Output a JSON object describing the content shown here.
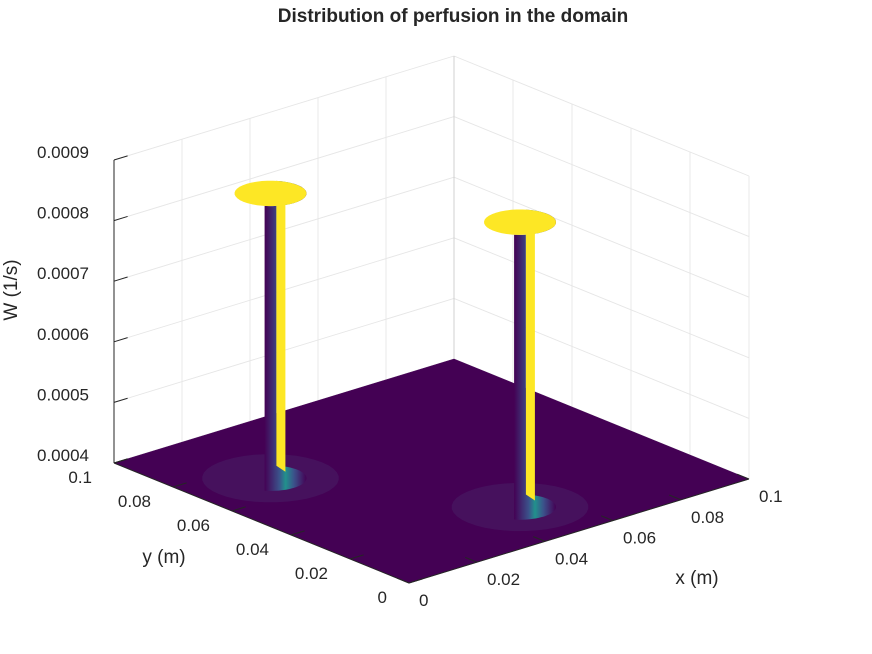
{
  "chart_data": {
    "type": "surface",
    "title": "Distribution of perfusion in the domain",
    "xlabel": "x (m)",
    "ylabel": "y (m)",
    "zlabel": "W (1/s)",
    "xlim": [
      0,
      0.1
    ],
    "ylim": [
      0,
      0.1
    ],
    "zlim": [
      0.0004,
      0.0009
    ],
    "xticks": [
      "0",
      "0.02",
      "0.04",
      "0.06",
      "0.08",
      "0.1"
    ],
    "yticks": [
      "0",
      "0.02",
      "0.04",
      "0.06",
      "0.08",
      "0.1"
    ],
    "zticks": [
      "0.0004",
      "0.0005",
      "0.0006",
      "0.0007",
      "0.0008",
      "0.0009"
    ],
    "colormap": "viridis",
    "base_value": 0.0004,
    "peaks": [
      {
        "x": 0.02,
        "y": 0.07,
        "radius": 0.008,
        "value": 0.00087
      },
      {
        "x": 0.05,
        "y": 0.02,
        "radius": 0.008,
        "value": 0.00087
      }
    ],
    "colors": {
      "low": "#440154",
      "mid": "#3b528b",
      "teal": "#21918c",
      "high": "#fde725"
    }
  }
}
